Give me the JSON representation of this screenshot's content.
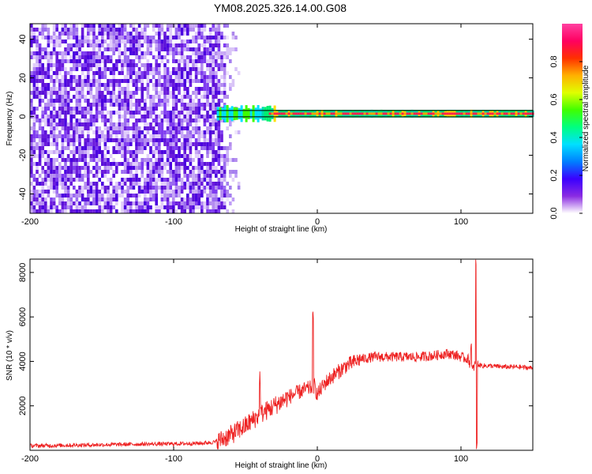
{
  "title": "YM08.2025.326.14.00.G08",
  "chart_data": [
    {
      "type": "heatmap",
      "name": "spectrogram",
      "xlabel": "Height of straight line (km)",
      "ylabel": "Frequency (Hz)",
      "xlim": [
        -200,
        150
      ],
      "ylim": [
        -50,
        48
      ],
      "xticks": [
        -200,
        -100,
        0,
        100
      ],
      "yticks": [
        -40,
        -20,
        0,
        20,
        40
      ],
      "xtick_labels": [
        "-200",
        "-100",
        "0",
        "100"
      ],
      "ytick_labels": [
        "-40",
        "-20",
        "0",
        "20",
        "40"
      ],
      "signal_band": {
        "center_hz": 1.5,
        "half_width_hz": 2,
        "x_start_km": -70,
        "x_end_km": 150,
        "noise_edge_km": -65
      },
      "colorbar": {
        "label": "Normalized spectral amplitude",
        "range": [
          0.0,
          1.0
        ],
        "ticks": [
          0.0,
          0.2,
          0.4,
          0.6,
          0.8
        ],
        "tick_labels": [
          "0.0",
          "0.2",
          "0.4",
          "0.6",
          "0.8"
        ],
        "colors": [
          "#ffffff",
          "#8a2be2",
          "#3a00ff",
          "#0080ff",
          "#00e0ff",
          "#00ff80",
          "#40ff00",
          "#e0ff00",
          "#ffb000",
          "#ff3000",
          "#ff0060",
          "#ff40a0"
        ]
      }
    },
    {
      "type": "line",
      "name": "snr",
      "xlabel": "Height of straight line (km)",
      "ylabel": "SNR (10 * v/v)",
      "xlim": [
        -200,
        150
      ],
      "ylim": [
        0,
        8600
      ],
      "xticks": [
        -200,
        -100,
        0,
        100
      ],
      "yticks": [
        2000,
        4000,
        6000,
        8000
      ],
      "xtick_labels": [
        "-200",
        "-100",
        "0",
        "100"
      ],
      "ytick_labels": [
        "2000",
        "4000",
        "6000",
        "8000"
      ],
      "color": "#ee2222",
      "series": [
        {
          "name": "SNR",
          "x": [
            -200,
            -180,
            -160,
            -140,
            -120,
            -100,
            -80,
            -70,
            -60,
            -50,
            -40,
            -30,
            -20,
            -10,
            -5,
            -2,
            0,
            5,
            10,
            20,
            30,
            40,
            50,
            60,
            70,
            80,
            90,
            95,
            100,
            105,
            108,
            110,
            112,
            115,
            120,
            130,
            140,
            150
          ],
          "y": [
            200,
            220,
            240,
            260,
            280,
            290,
            320,
            380,
            700,
            1100,
            1600,
            2000,
            2400,
            2700,
            2800,
            2900,
            2500,
            3000,
            3300,
            3800,
            4100,
            4200,
            4200,
            4200,
            4200,
            4250,
            4350,
            4300,
            4200,
            4100,
            3600,
            3900,
            3850,
            3800,
            3800,
            3750,
            3750,
            3700
          ]
        }
      ],
      "spikes": [
        {
          "x": -40,
          "y": 3300
        },
        {
          "x": -3,
          "y": 5900
        },
        {
          "x": 107,
          "y": 4700
        },
        {
          "x": 110.5,
          "y": 8400
        },
        {
          "x": 111,
          "y": 200
        }
      ]
    }
  ]
}
